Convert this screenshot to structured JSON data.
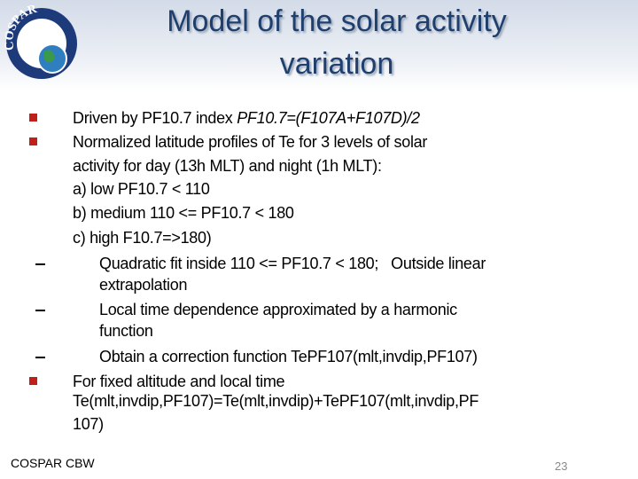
{
  "header": {
    "logo": "COSPAR",
    "title_lines": [
      "Model of the solar activity",
      "variation"
    ]
  },
  "body": {
    "bullets": [
      {
        "parts": [
          "Driven by PF10.7 index ",
          "PF10.7=(F107A+F107D)/2"
        ]
      },
      {
        "lines": [
          "Normalized latitude profiles of Te for 3 levels of solar",
          "activity for day (13h MLT) and night (1h MLT):",
          "a) low PF10.7 < 110",
          "b) medium 110 <= PF10.7 < 180",
          "c) high F10.7=>180)"
        ],
        "subitems": [
          {
            "lines": [
              "Quadratic fit inside 110 <= PF10.7 < 180;   Outside linear",
              "extrapolation"
            ]
          },
          {
            "lines": [
              "Local time dependence approximated by a harmonic",
              "function"
            ]
          },
          {
            "lines": [
              "Obtain a correction function TePF107(mlt,invdip,PF107)"
            ]
          }
        ]
      },
      {
        "lines": [
          "For fixed altitude and local time",
          "Te(mlt,invdip,PF107)=Te(mlt,invdip)+TePF107(mlt,invdip,PF",
          "107)"
        ]
      }
    ]
  },
  "footer": {
    "left": "COSPAR CBW",
    "page": "23"
  }
}
